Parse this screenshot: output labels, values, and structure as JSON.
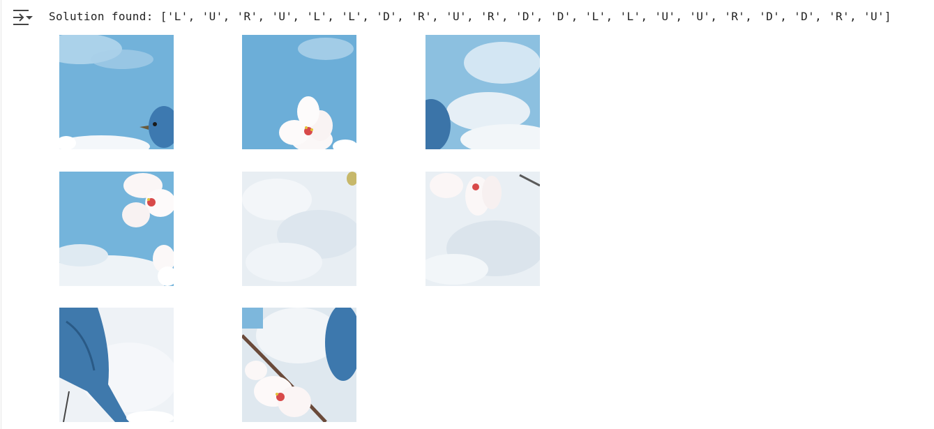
{
  "output": {
    "toggle_icon": "collapse-output-icon",
    "text": "Solution found: ['L', 'U', 'R', 'U', 'L', 'L', 'D', 'R', 'U', 'R', 'D', 'D', 'L', 'L', 'U', 'U', 'R', 'D', 'D', 'R', 'U']"
  },
  "puzzle": {
    "rows": 3,
    "cols": 3,
    "tiles": [
      {
        "row": 1,
        "col": 1,
        "content": "sky with bird head"
      },
      {
        "row": 1,
        "col": 2,
        "content": "sky with cherry blossom"
      },
      {
        "row": 1,
        "col": 3,
        "content": "sky with clouds and bird back"
      },
      {
        "row": 2,
        "col": 1,
        "content": "cherry blossoms on sky"
      },
      {
        "row": 2,
        "col": 2,
        "content": "clouds"
      },
      {
        "row": 2,
        "col": 3,
        "content": "blossoms and clouds"
      },
      {
        "row": 3,
        "col": 1,
        "content": "bird tail feathers"
      },
      {
        "row": 3,
        "col": 2,
        "content": "blossom branch and bird"
      }
    ]
  },
  "colors": {
    "sky": "#6fb0d8",
    "cloud": "#eef2f6",
    "bird": "#3b74a8",
    "blossom": "#fbf6f6",
    "blossom_center": "#d84a4a"
  }
}
